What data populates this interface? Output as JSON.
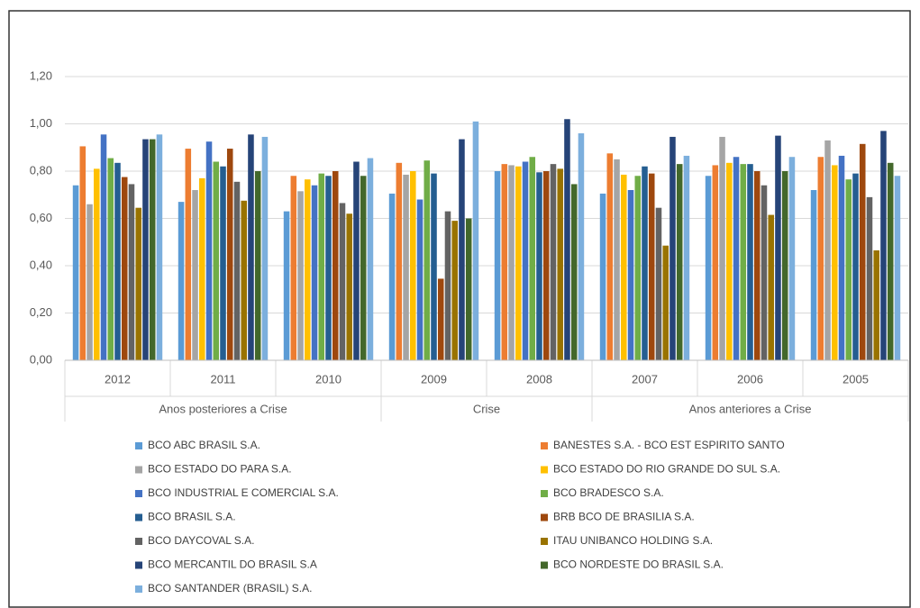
{
  "chart_data": {
    "type": "bar",
    "categories": [
      "2012",
      "2011",
      "2010",
      "2009",
      "2008",
      "2007",
      "2006",
      "2005"
    ],
    "groups": [
      {
        "label": "Anos posteriores a Crise",
        "span": 3
      },
      {
        "label": "Crise",
        "span": 2
      },
      {
        "label": "Anos anteriores a Crise",
        "span": 3
      }
    ],
    "ylim": [
      0,
      1.2
    ],
    "yticks": [
      {
        "value": 0,
        "label": "0,00"
      },
      {
        "value": 0.2,
        "label": "0,20"
      },
      {
        "value": 0.4,
        "label": "0,40"
      },
      {
        "value": 0.6,
        "label": "0,60"
      },
      {
        "value": 0.8,
        "label": "0,80"
      },
      {
        "value": 1,
        "label": "1,00"
      },
      {
        "value": 1.2,
        "label": "1,20"
      }
    ],
    "grid": true,
    "series": [
      {
        "name": "BCO ABC BRASIL S.A.",
        "color": "#5b9bd5",
        "values": [
          0.74,
          0.67,
          0.63,
          0.705,
          0.8,
          0.705,
          0.78,
          0.72
        ]
      },
      {
        "name": "BANESTES S.A. - BCO EST ESPIRITO SANTO",
        "color": "#ed7d31",
        "values": [
          0.905,
          0.895,
          0.78,
          0.835,
          0.83,
          0.875,
          0.825,
          0.86
        ]
      },
      {
        "name": "BCO ESTADO DO PARA S.A.",
        "color": "#a5a5a5",
        "values": [
          0.66,
          0.72,
          0.715,
          0.785,
          0.825,
          0.85,
          0.945,
          0.93
        ]
      },
      {
        "name": "BCO ESTADO DO RIO GRANDE DO SUL S.A.",
        "color": "#ffc000",
        "values": [
          0.81,
          0.77,
          0.765,
          0.8,
          0.82,
          0.785,
          0.835,
          0.825
        ]
      },
      {
        "name": "BCO INDUSTRIAL E COMERCIAL S.A.",
        "color": "#4472c4",
        "values": [
          0.955,
          0.925,
          0.74,
          0.68,
          0.84,
          0.72,
          0.86,
          0.865
        ]
      },
      {
        "name": "BCO BRADESCO S.A.",
        "color": "#70ad47",
        "values": [
          0.855,
          0.84,
          0.79,
          0.845,
          0.86,
          0.78,
          0.83,
          0.765
        ]
      },
      {
        "name": "BCO BRASIL S.A.",
        "color": "#255e91",
        "values": [
          0.835,
          0.82,
          0.78,
          0.79,
          0.795,
          0.82,
          0.83,
          0.79
        ]
      },
      {
        "name": "BRB BCO DE BRASILIA S.A.",
        "color": "#9e480e",
        "values": [
          0.775,
          0.895,
          0.8,
          0.345,
          0.8,
          0.79,
          0.8,
          0.915
        ]
      },
      {
        "name": "BCO DAYCOVAL S.A.",
        "color": "#636363",
        "values": [
          0.745,
          0.755,
          0.665,
          0.63,
          0.83,
          0.645,
          0.74,
          0.69
        ]
      },
      {
        "name": "ITAU UNIBANCO HOLDING S.A.",
        "color": "#997300",
        "values": [
          0.645,
          0.675,
          0.62,
          0.59,
          0.81,
          0.485,
          0.615,
          0.465
        ]
      },
      {
        "name": "BCO MERCANTIL DO BRASIL S.A",
        "color": "#264478",
        "values": [
          0.935,
          0.955,
          0.84,
          0.935,
          1.02,
          0.945,
          0.95,
          0.97
        ]
      },
      {
        "name": "BCO NORDESTE DO BRASIL S.A.",
        "color": "#43682b",
        "values": [
          0.935,
          0.8,
          0.78,
          0.6,
          0.745,
          0.83,
          0.8,
          0.835
        ]
      },
      {
        "name": "BCO SANTANDER (BRASIL) S.A.",
        "color": "#7cafdd",
        "values": [
          0.955,
          0.945,
          0.855,
          1.01,
          0.96,
          0.865,
          0.86,
          0.78
        ]
      }
    ]
  }
}
